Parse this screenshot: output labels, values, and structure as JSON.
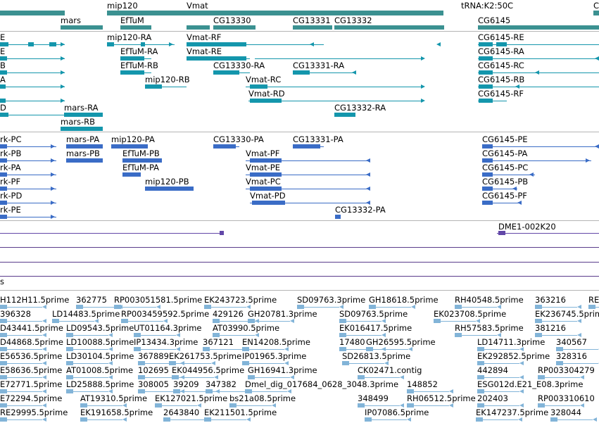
{
  "colors": {
    "gene": "#3b9191",
    "flybase_transcript": "#1496ac",
    "refseq_transcript": "#3a6cc6",
    "bac": "#6247a8",
    "est": "#82b4d8",
    "separator": "#b4b4b4"
  },
  "genes": [
    {
      "label": "mars"
    },
    {
      "label": "mip120"
    },
    {
      "label": "EfTuM"
    },
    {
      "label": "Vmat"
    },
    {
      "label": "CG13330"
    },
    {
      "label": "CG13331"
    },
    {
      "label": "CG13332"
    },
    {
      "label": "tRNA:K2:50C"
    },
    {
      "label": "CG6145"
    },
    {
      "label": "C"
    }
  ],
  "flybase_transcripts": [
    {
      "label": "E"
    },
    {
      "label": "E"
    },
    {
      "label": "B"
    },
    {
      "label": "A"
    },
    {
      "label": "D"
    },
    {
      "label": "mip120-RA"
    },
    {
      "label": "Vmat-RF"
    },
    {
      "label": "CG6145-RE"
    },
    {
      "label": "EfTuM-RA"
    },
    {
      "label": "Vmat-RE"
    },
    {
      "label": "CG6145-RA"
    },
    {
      "label": "EfTuM-RB"
    },
    {
      "label": "CG13330-RA"
    },
    {
      "label": "CG13331-RA"
    },
    {
      "label": "CG6145-RC"
    },
    {
      "label": "mip120-RB"
    },
    {
      "label": "Vmat-RC"
    },
    {
      "label": "CG6145-RB"
    },
    {
      "label": "Vmat-RD"
    },
    {
      "label": "CG6145-RF"
    },
    {
      "label": "mars-RA"
    },
    {
      "label": "CG13332-RA"
    },
    {
      "label": "mars-RB"
    }
  ],
  "refseq_transcripts": [
    {
      "label": "rk-PC"
    },
    {
      "label": "mars-PA"
    },
    {
      "label": "mip120-PA"
    },
    {
      "label": "CG13330-PA"
    },
    {
      "label": "CG13331-PA"
    },
    {
      "label": "CG6145-PE"
    },
    {
      "label": "rk-PB"
    },
    {
      "label": "mars-PB"
    },
    {
      "label": "EfTuM-PB"
    },
    {
      "label": "Vmat-PF"
    },
    {
      "label": "CG6145-PA"
    },
    {
      "label": "rk-PA"
    },
    {
      "label": "EfTuM-PA"
    },
    {
      "label": "Vmat-PE"
    },
    {
      "label": "CG6145-PC"
    },
    {
      "label": "rk-PF"
    },
    {
      "label": "mip120-PB"
    },
    {
      "label": "Vmat-PC"
    },
    {
      "label": "CG6145-PB"
    },
    {
      "label": "rk-PD"
    },
    {
      "label": "Vmat-PD"
    },
    {
      "label": "CG6145-PF"
    },
    {
      "label": "rk-PE"
    },
    {
      "label": "CG13332-PA"
    }
  ],
  "bac": [
    {
      "label": "DME1-002K20"
    }
  ],
  "ests": [
    "H112H11.5prime",
    "362775",
    "RP003051581.5prime",
    "EK243723.5prime",
    "SD09763.3prime",
    "GH18618.5prime",
    "RH40548.5prime",
    "363216",
    "RE",
    "396328",
    "LD14483.5prime",
    "RP003459592.5prime",
    "429126",
    "GH20781.3prime",
    "SD09763.5prime",
    "EK023708.5prime",
    "EK236745.5prime",
    "D43441.5prime",
    "LD09543.5prime",
    "UT01164.3prime",
    "AT03990.5prime",
    "EK016417.5prime",
    "RH57583.5prime",
    "381216",
    "D44868.5prime",
    "LD10088.5prime",
    "IP13434.3prime",
    "367121",
    "EN14208.5prime",
    "17480",
    "GH26595.5prime",
    "LD14711.3prime",
    "340567",
    "E56536.5prime",
    "LD30104.5prime",
    "367889",
    "EK261753.5prime",
    "IP01965.3prime",
    "SD26813.5prime",
    "EK292852.5prime",
    "328316",
    "E58636.5prime",
    "AT01008.5prime",
    "102695",
    "EK044956.5prime",
    "GH16941.3prime",
    "CK02471.contig",
    "442894",
    "RP003304279",
    "E72771.5prime",
    "LD25888.5prime",
    "308005",
    "39209",
    "347382",
    "Dmel_dig_017684_0628_3048.3prime",
    "148852",
    "ESG012d.E21_E08.3prime",
    "E72294.5prime",
    "AT19310.5prime",
    "EK127021.5prime",
    "bs21a08.5prime",
    "348499",
    "RH06512.5prime",
    "202403",
    "RP003310610",
    "RE29995.5prime",
    "EK191658.5prime",
    "2643840",
    "EK211501.5prime",
    "IP07086.5prime",
    "EK147237.5prime",
    "328044"
  ],
  "partial_label": "s"
}
